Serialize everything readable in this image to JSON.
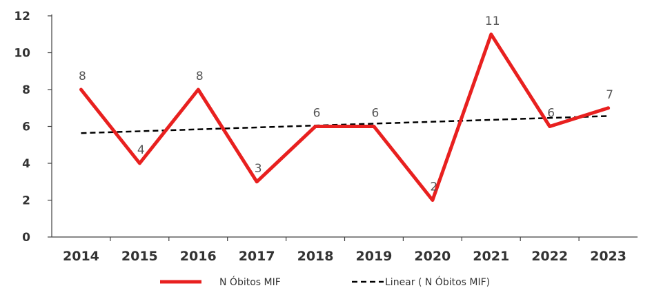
{
  "chart_data": {
    "type": "line",
    "categories": [
      "2014",
      "2015",
      "2016",
      "2017",
      "2018",
      "2019",
      "2020",
      "2021",
      "2022",
      "2023"
    ],
    "series": [
      {
        "name": "N Óbitos MIF",
        "values": [
          8,
          4,
          8,
          3,
          6,
          6,
          2,
          11,
          6,
          7
        ],
        "color": "#e8201f",
        "data_labels": [
          "8",
          "4",
          "8",
          "3",
          "6",
          "6",
          "2",
          "11",
          "6",
          "7"
        ]
      }
    ],
    "trendline": {
      "name": "Linear (   N Óbitos MIF)",
      "type": "linear",
      "color": "#000000",
      "style": "dashed"
    },
    "yticks": [
      "0",
      "2",
      "4",
      "6",
      "8",
      "10",
      "12"
    ],
    "ylim": [
      0,
      12
    ],
    "title": "",
    "xlabel": "",
    "ylabel": "",
    "grid": false,
    "legend": "bottom"
  }
}
